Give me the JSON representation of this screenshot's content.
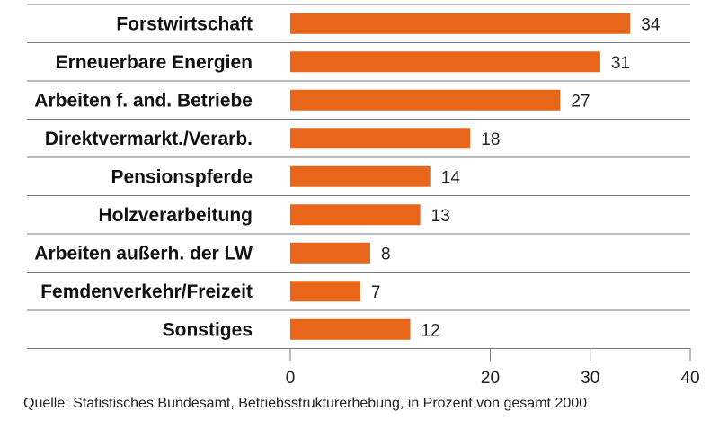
{
  "source": "Quelle: Statistisches Bundesamt, Betriebsstrukturerhebung, in Prozent von gesamt 2000",
  "colors": {
    "bar": "#e8661a",
    "grid": "#7a7a7a",
    "text": "#111111"
  },
  "chart_data": {
    "type": "bar",
    "orientation": "horizontal",
    "categories": [
      "Forstwirtschaft",
      "Erneuerbare Energien",
      "Arbeiten f. and. Betriebe",
      "Direktvermarkt./Verarb.",
      "Pensionspferde",
      "Holzverarbeitung",
      "Arbeiten außerh. der LW",
      "Femdenverkehr/Freizeit",
      "Sonstiges"
    ],
    "values": [
      34,
      31,
      27,
      18,
      14,
      13,
      8,
      7,
      12
    ],
    "value_labels": [
      "34",
      "31",
      "27",
      "18",
      "14",
      "13",
      "8",
      "7",
      "12"
    ],
    "xlim": [
      0,
      40
    ],
    "xticks": [
      0,
      20,
      30,
      40
    ],
    "xtick_labels": [
      "0",
      "20",
      "30",
      "40"
    ],
    "title": "",
    "xlabel": "",
    "ylabel": "",
    "grid": true,
    "legend": "none"
  }
}
